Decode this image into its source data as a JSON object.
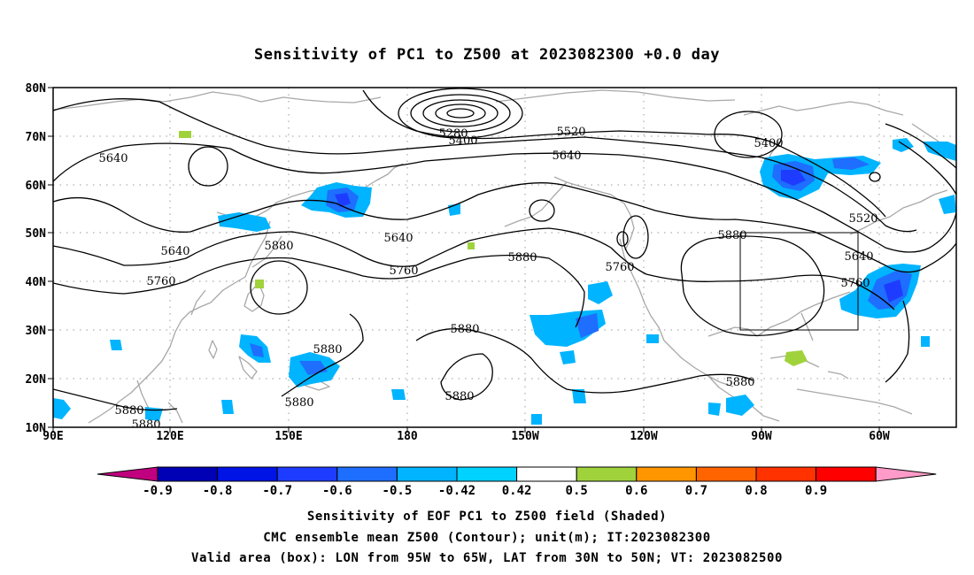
{
  "title": "Sensitivity of PC1 to Z500 at 2023082300 +0.0 day",
  "lat_labels": [
    "80N",
    "70N",
    "60N",
    "50N",
    "40N",
    "30N",
    "20N",
    "10N"
  ],
  "lon_labels": [
    "90E",
    "120E",
    "150E",
    "180",
    "150W",
    "120W",
    "90W",
    "60W"
  ],
  "colorbar": {
    "levels": [
      "-0.9",
      "-0.8",
      "-0.7",
      "-0.6",
      "-0.5",
      "-0.42",
      "0.42",
      "0.5",
      "0.6",
      "0.7",
      "0.8",
      "0.9"
    ],
    "colors": [
      "#c0007f",
      "#0000b4",
      "#0014e6",
      "#1e3cff",
      "#1e6eff",
      "#00b4ff",
      "#00d2ff",
      "#ffffff",
      "#a0d23c",
      "#ff9600",
      "#ff6400",
      "#ff3200",
      "#ff0000",
      "#ff9bc8"
    ]
  },
  "contour_labels": [
    "5280",
    "5400",
    "5520",
    "5640",
    "5640",
    "5400",
    "5520",
    "5640",
    "5640",
    "5880",
    "5640",
    "5760",
    "5760",
    "5880",
    "5760",
    "5880",
    "5760",
    "5880",
    "5880",
    "5880",
    "5880",
    "5880",
    "5880",
    "5880",
    "5880"
  ],
  "footer": [
    "Sensitivity of EOF PC1 to Z500 field (Shaded)",
    "CMC ensemble mean Z500 (Contour); unit(m); IT:2023082300",
    "Valid area (box): LON from 95W to 65W, LAT from 30N to 50N; VT: 2023082500"
  ]
}
